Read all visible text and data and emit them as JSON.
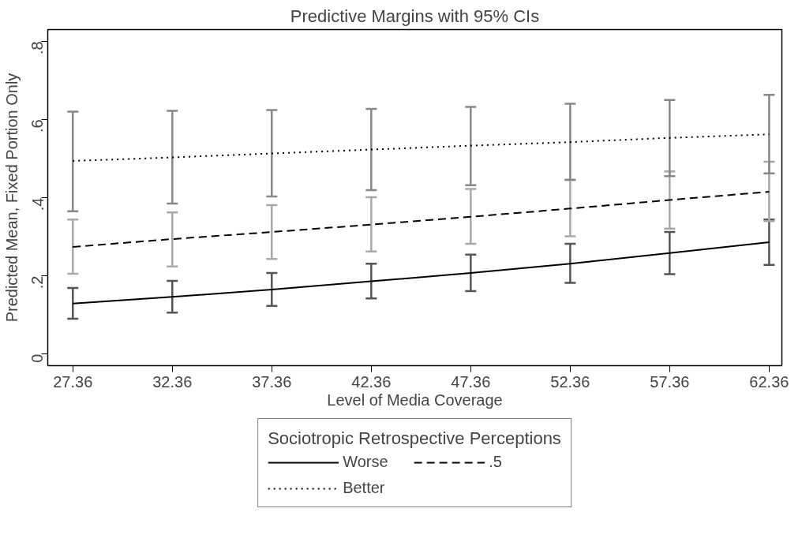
{
  "chart_data": {
    "type": "line",
    "title": "Predictive Margins with 95% CIs",
    "xlabel": "Level of Media Coverage",
    "ylabel": "Predicted Mean, Fixed Portion Only",
    "legend_title": "Sociotropic Retrospective Perceptions",
    "legend": "bottom",
    "grid": false,
    "x": [
      27.36,
      32.36,
      37.36,
      42.36,
      47.36,
      52.36,
      57.36,
      62.36
    ],
    "xlim": [
      26.1,
      63.0
    ],
    "xticks": [
      27.36,
      32.36,
      37.36,
      42.36,
      47.36,
      52.36,
      57.36,
      62.36
    ],
    "ylim": [
      -0.03,
      0.83
    ],
    "yticks": [
      0,
      {
        "value": 0.2,
        "label": ".2"
      },
      {
        "value": 0.4,
        "label": ".4"
      },
      {
        "value": 0.6,
        "label": ".6"
      },
      {
        "value": 0.8,
        "label": ".8"
      }
    ],
    "series": [
      {
        "name": "Worse",
        "color": "#000000",
        "line_style": "solid",
        "values": [
          0.129,
          0.146,
          0.165,
          0.186,
          0.207,
          0.231,
          0.258,
          0.286
        ],
        "errors": [
          [
            0.09,
            0.169
          ],
          [
            0.106,
            0.187
          ],
          [
            0.123,
            0.207
          ],
          [
            0.142,
            0.231
          ],
          [
            0.161,
            0.254
          ],
          [
            0.182,
            0.282
          ],
          [
            0.204,
            0.312
          ],
          [
            0.228,
            0.344
          ]
        ]
      },
      {
        "name": ".5",
        "color": "#000000",
        "line_style": "dashed",
        "values": [
          0.274,
          0.294,
          0.312,
          0.331,
          0.351,
          0.372,
          0.394,
          0.415
        ],
        "errors": [
          [
            0.205,
            0.344
          ],
          [
            0.224,
            0.362
          ],
          [
            0.243,
            0.381
          ],
          [
            0.262,
            0.401
          ],
          [
            0.282,
            0.422
          ],
          [
            0.301,
            0.445
          ],
          [
            0.321,
            0.467
          ],
          [
            0.34,
            0.492
          ]
        ]
      },
      {
        "name": "Better",
        "color": "#000000",
        "line_style": "dotted",
        "values": [
          0.494,
          0.503,
          0.513,
          0.523,
          0.533,
          0.542,
          0.553,
          0.562
        ],
        "errors": [
          [
            0.365,
            0.62
          ],
          [
            0.385,
            0.622
          ],
          [
            0.403,
            0.624
          ],
          [
            0.419,
            0.627
          ],
          [
            0.432,
            0.632
          ],
          [
            0.446,
            0.64
          ],
          [
            0.455,
            0.65
          ],
          [
            0.462,
            0.663
          ]
        ]
      }
    ]
  }
}
